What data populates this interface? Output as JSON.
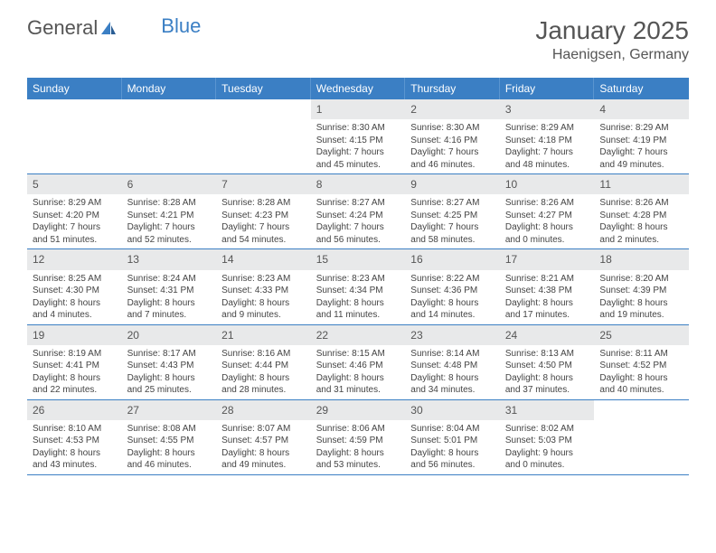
{
  "logo": {
    "text1": "General",
    "text2": "Blue"
  },
  "title": "January 2025",
  "location": "Haenigsen, Germany",
  "weekdays": [
    "Sunday",
    "Monday",
    "Tuesday",
    "Wednesday",
    "Thursday",
    "Friday",
    "Saturday"
  ],
  "colors": {
    "header_bar": "#3b7fc4",
    "daynum_bg": "#e8e9ea",
    "row_border": "#3b7fc4",
    "text": "#444444"
  },
  "weeks": [
    [
      null,
      null,
      null,
      {
        "n": "1",
        "sr": "8:30 AM",
        "ss": "4:15 PM",
        "dl": "7 hours and 45 minutes."
      },
      {
        "n": "2",
        "sr": "8:30 AM",
        "ss": "4:16 PM",
        "dl": "7 hours and 46 minutes."
      },
      {
        "n": "3",
        "sr": "8:29 AM",
        "ss": "4:18 PM",
        "dl": "7 hours and 48 minutes."
      },
      {
        "n": "4",
        "sr": "8:29 AM",
        "ss": "4:19 PM",
        "dl": "7 hours and 49 minutes."
      }
    ],
    [
      {
        "n": "5",
        "sr": "8:29 AM",
        "ss": "4:20 PM",
        "dl": "7 hours and 51 minutes."
      },
      {
        "n": "6",
        "sr": "8:28 AM",
        "ss": "4:21 PM",
        "dl": "7 hours and 52 minutes."
      },
      {
        "n": "7",
        "sr": "8:28 AM",
        "ss": "4:23 PM",
        "dl": "7 hours and 54 minutes."
      },
      {
        "n": "8",
        "sr": "8:27 AM",
        "ss": "4:24 PM",
        "dl": "7 hours and 56 minutes."
      },
      {
        "n": "9",
        "sr": "8:27 AM",
        "ss": "4:25 PM",
        "dl": "7 hours and 58 minutes."
      },
      {
        "n": "10",
        "sr": "8:26 AM",
        "ss": "4:27 PM",
        "dl": "8 hours and 0 minutes."
      },
      {
        "n": "11",
        "sr": "8:26 AM",
        "ss": "4:28 PM",
        "dl": "8 hours and 2 minutes."
      }
    ],
    [
      {
        "n": "12",
        "sr": "8:25 AM",
        "ss": "4:30 PM",
        "dl": "8 hours and 4 minutes."
      },
      {
        "n": "13",
        "sr": "8:24 AM",
        "ss": "4:31 PM",
        "dl": "8 hours and 7 minutes."
      },
      {
        "n": "14",
        "sr": "8:23 AM",
        "ss": "4:33 PM",
        "dl": "8 hours and 9 minutes."
      },
      {
        "n": "15",
        "sr": "8:23 AM",
        "ss": "4:34 PM",
        "dl": "8 hours and 11 minutes."
      },
      {
        "n": "16",
        "sr": "8:22 AM",
        "ss": "4:36 PM",
        "dl": "8 hours and 14 minutes."
      },
      {
        "n": "17",
        "sr": "8:21 AM",
        "ss": "4:38 PM",
        "dl": "8 hours and 17 minutes."
      },
      {
        "n": "18",
        "sr": "8:20 AM",
        "ss": "4:39 PM",
        "dl": "8 hours and 19 minutes."
      }
    ],
    [
      {
        "n": "19",
        "sr": "8:19 AM",
        "ss": "4:41 PM",
        "dl": "8 hours and 22 minutes."
      },
      {
        "n": "20",
        "sr": "8:17 AM",
        "ss": "4:43 PM",
        "dl": "8 hours and 25 minutes."
      },
      {
        "n": "21",
        "sr": "8:16 AM",
        "ss": "4:44 PM",
        "dl": "8 hours and 28 minutes."
      },
      {
        "n": "22",
        "sr": "8:15 AM",
        "ss": "4:46 PM",
        "dl": "8 hours and 31 minutes."
      },
      {
        "n": "23",
        "sr": "8:14 AM",
        "ss": "4:48 PM",
        "dl": "8 hours and 34 minutes."
      },
      {
        "n": "24",
        "sr": "8:13 AM",
        "ss": "4:50 PM",
        "dl": "8 hours and 37 minutes."
      },
      {
        "n": "25",
        "sr": "8:11 AM",
        "ss": "4:52 PM",
        "dl": "8 hours and 40 minutes."
      }
    ],
    [
      {
        "n": "26",
        "sr": "8:10 AM",
        "ss": "4:53 PM",
        "dl": "8 hours and 43 minutes."
      },
      {
        "n": "27",
        "sr": "8:08 AM",
        "ss": "4:55 PM",
        "dl": "8 hours and 46 minutes."
      },
      {
        "n": "28",
        "sr": "8:07 AM",
        "ss": "4:57 PM",
        "dl": "8 hours and 49 minutes."
      },
      {
        "n": "29",
        "sr": "8:06 AM",
        "ss": "4:59 PM",
        "dl": "8 hours and 53 minutes."
      },
      {
        "n": "30",
        "sr": "8:04 AM",
        "ss": "5:01 PM",
        "dl": "8 hours and 56 minutes."
      },
      {
        "n": "31",
        "sr": "8:02 AM",
        "ss": "5:03 PM",
        "dl": "9 hours and 0 minutes."
      },
      null
    ]
  ],
  "labels": {
    "sunrise": "Sunrise:",
    "sunset": "Sunset:",
    "daylight": "Daylight:"
  }
}
